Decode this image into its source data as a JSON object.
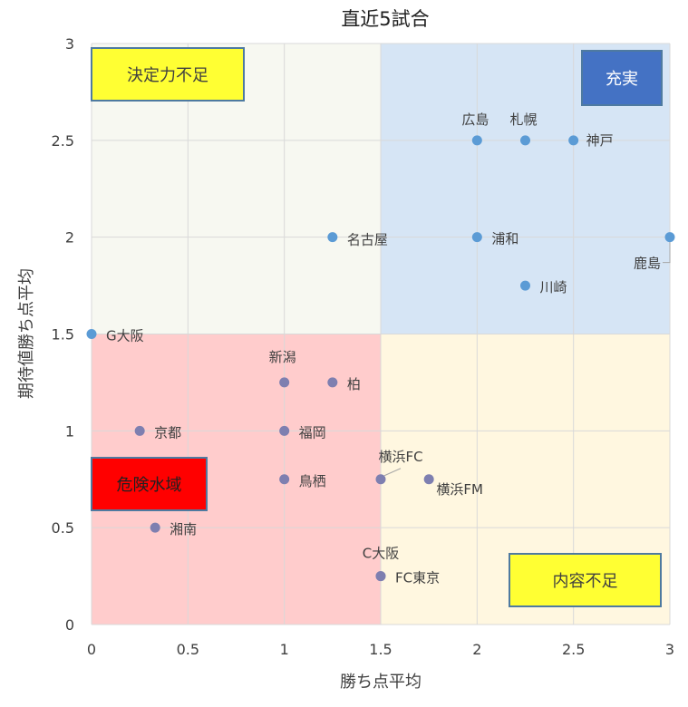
{
  "chart_data": {
    "type": "scatter",
    "title": "直近5試合",
    "xlabel": "勝ち点平均",
    "ylabel": "期待値勝ち点平均",
    "xlim": [
      0,
      3
    ],
    "ylim": [
      0,
      3
    ],
    "xticks": [
      "0",
      "0.5",
      "1",
      "1.5",
      "2",
      "2.5",
      "3"
    ],
    "yticks": [
      "0",
      "0.5",
      "1",
      "1.5",
      "2",
      "2.5",
      "3"
    ],
    "grid": true,
    "quadrants": [
      {
        "name": "決定力不足",
        "x": [
          0,
          1.5
        ],
        "y": [
          1.5,
          3
        ],
        "fill": "#f7f8f1"
      },
      {
        "name": "充実",
        "x": [
          1.5,
          3
        ],
        "y": [
          1.5,
          3
        ],
        "fill": "#d6e5f5"
      },
      {
        "name": "危険水域",
        "x": [
          0,
          1.5
        ],
        "y": [
          0,
          1.5
        ],
        "fill": "#ffcccc"
      },
      {
        "name": "内容不足",
        "x": [
          1.5,
          3
        ],
        "y": [
          0,
          1.5
        ],
        "fill": "#fff7e0"
      }
    ],
    "annotations": [
      {
        "text": "決定力不足",
        "bg": "#ffff33",
        "fg": "#404040",
        "border": "#4e7aa0"
      },
      {
        "text": "充実",
        "bg": "#4472c4",
        "fg": "#ffffff",
        "border": "#4e7aa0"
      },
      {
        "text": "危険水域",
        "bg": "#ff0000",
        "fg": "#202020",
        "border": "#4e7aa0"
      },
      {
        "text": "内容不足",
        "bg": "#ffff33",
        "fg": "#404040",
        "border": "#4e7aa0"
      }
    ],
    "points": [
      {
        "team": "広島",
        "x": 2,
        "y": 2.5
      },
      {
        "team": "札幌",
        "x": 2.25,
        "y": 2.5
      },
      {
        "team": "神戸",
        "x": 2.5,
        "y": 2.5
      },
      {
        "team": "名古屋",
        "x": 1.25,
        "y": 2
      },
      {
        "team": "浦和",
        "x": 2,
        "y": 2
      },
      {
        "team": "鹿島",
        "x": 3,
        "y": 2
      },
      {
        "team": "川崎",
        "x": 2.25,
        "y": 1.75
      },
      {
        "team": "G大阪",
        "x": 0,
        "y": 1.5
      },
      {
        "team": "新潟",
        "x": 1,
        "y": 1.25
      },
      {
        "team": "柏",
        "x": 1.25,
        "y": 1.25
      },
      {
        "team": "京都",
        "x": 0.25,
        "y": 1
      },
      {
        "team": "福岡",
        "x": 1,
        "y": 1
      },
      {
        "team": "鳥栖",
        "x": 1,
        "y": 0.75
      },
      {
        "team": "横浜FC",
        "x": 1.5,
        "y": 0.75
      },
      {
        "team": "横浜FM",
        "x": 1.75,
        "y": 0.75
      },
      {
        "team": "湘南",
        "x": 0.33,
        "y": 0.5
      },
      {
        "team": "C大阪",
        "x": 1.5,
        "y": 0.25
      },
      {
        "team": "FC東京",
        "x": 1.5,
        "y": 0.25
      }
    ],
    "colors": {
      "point_upper": "#5b9bd5",
      "point_lower": "#7e7fb0",
      "grid": "#d9d9d9"
    }
  }
}
